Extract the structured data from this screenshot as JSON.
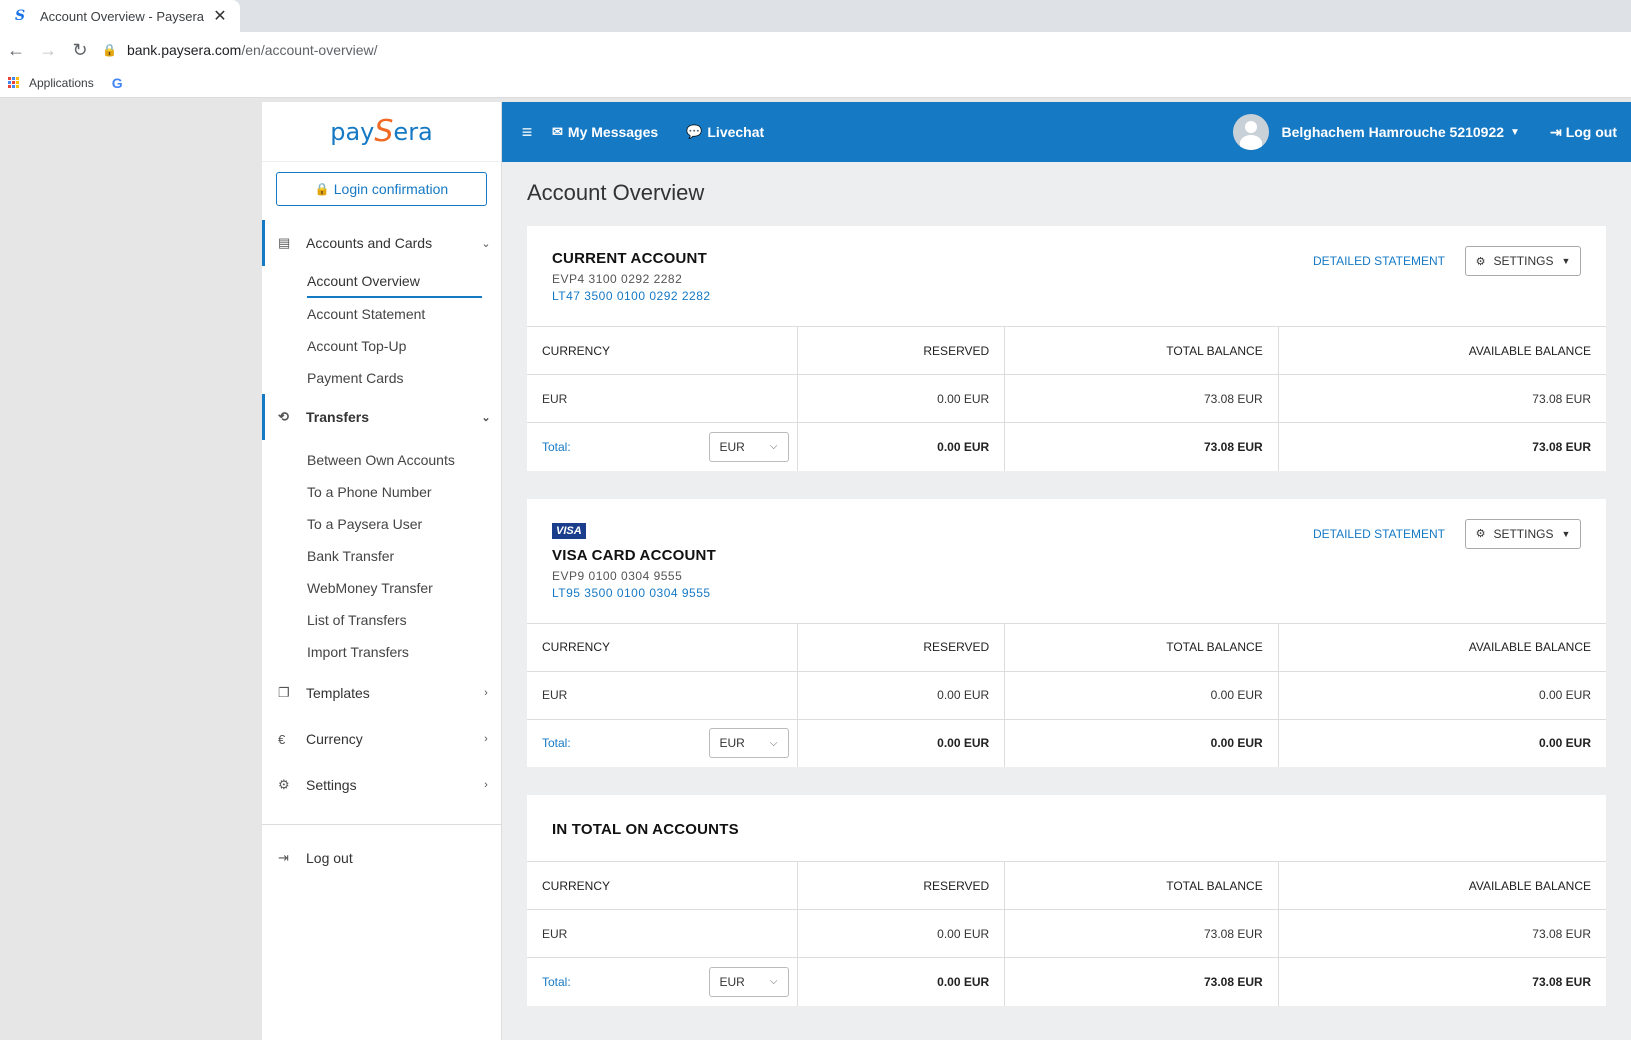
{
  "browser": {
    "tab_title": "Account Overview - Paysera",
    "url_host": "bank.paysera.com",
    "url_path": "/en/account-overview/",
    "bookmark_apps": "Applications"
  },
  "sidebar": {
    "logo": {
      "pre": "pay",
      "s": "S",
      "post": "era"
    },
    "login_confirmation": "Login confirmation",
    "accounts_group": "Accounts and Cards",
    "accounts_items": [
      "Account Overview",
      "Account Statement",
      "Account Top-Up",
      "Payment Cards"
    ],
    "transfers_group": "Transfers",
    "transfers_items": [
      "Between Own Accounts",
      "To a Phone Number",
      "To a Paysera User",
      "Bank Transfer",
      "WebMoney Transfer",
      "List of Transfers",
      "Import Transfers"
    ],
    "templates": "Templates",
    "currency": "Currency",
    "settings": "Settings",
    "logout": "Log out"
  },
  "topbar": {
    "messages": "My Messages",
    "livechat": "Livechat",
    "user": "Belghachem Hamrouche 5210922",
    "logout": "Log out"
  },
  "main": {
    "title": "Account Overview",
    "headers": {
      "currency": "CURRENCY",
      "reserved": "RESERVED",
      "total": "TOTAL BALANCE",
      "available": "AVAILABLE BALANCE"
    },
    "detailed_statement": "DETAILED STATEMENT",
    "settings": "SETTINGS",
    "total_label": "Total:",
    "accounts": [
      {
        "name": "CURRENT ACCOUNT",
        "evp": "EVP4 3100 0292 2282",
        "iban": "LT47 3500 0100 0292 2282",
        "row": {
          "currency": "EUR",
          "reserved": "0.00 EUR",
          "total": "73.08 EUR",
          "available": "73.08 EUR"
        },
        "totals": {
          "currency": "EUR",
          "reserved": "0.00 EUR",
          "total": "73.08 EUR",
          "available": "73.08 EUR"
        }
      },
      {
        "badge": "VISA",
        "name": "VISA CARD ACCOUNT",
        "evp": "EVP9 0100 0304 9555",
        "iban": "LT95 3500 0100 0304 9555",
        "row": {
          "currency": "EUR",
          "reserved": "0.00 EUR",
          "total": "0.00 EUR",
          "available": "0.00 EUR"
        },
        "totals": {
          "currency": "EUR",
          "reserved": "0.00 EUR",
          "total": "0.00 EUR",
          "available": "0.00 EUR"
        }
      }
    ],
    "in_total": {
      "name": "IN TOTAL ON ACCOUNTS",
      "row": {
        "currency": "EUR",
        "reserved": "0.00 EUR",
        "total": "73.08 EUR",
        "available": "73.08 EUR"
      },
      "totals": {
        "currency": "EUR",
        "reserved": "0.00 EUR",
        "total": "73.08 EUR",
        "available": "73.08 EUR"
      }
    }
  }
}
